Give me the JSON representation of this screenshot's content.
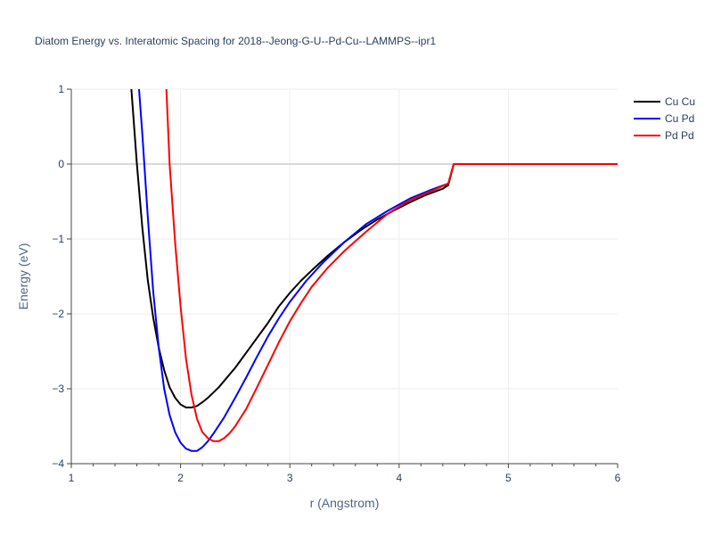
{
  "chart_data": {
    "type": "line",
    "title": "Diatom Energy vs. Interatomic Spacing for 2018--Jeong-G-U--Pd-Cu--LAMMPS--ipr1",
    "xlabel": "r (Angstrom)",
    "ylabel": "Energy (eV)",
    "xlim": [
      1,
      6
    ],
    "ylim": [
      -4,
      1
    ],
    "xticks": [
      1,
      2,
      3,
      4,
      5,
      6
    ],
    "yticks": [
      -4,
      -3,
      -2,
      -1,
      0,
      1
    ],
    "xtick_labels": [
      "1",
      "2",
      "3",
      "4",
      "5",
      "6"
    ],
    "ytick_labels": [
      "−4",
      "−3",
      "−2",
      "−1",
      "0",
      "1"
    ],
    "grid": true,
    "legend_position": "top-right",
    "colors": {
      "grid": "#eeeeee",
      "zeroline": "#cccccc",
      "axis_line": "#444444",
      "text": "#2a3f5f",
      "axis_title": "#506784"
    },
    "series": [
      {
        "name": "Cu Cu",
        "color": "#000000",
        "x": [
          1.55,
          1.6,
          1.65,
          1.7,
          1.75,
          1.8,
          1.85,
          1.9,
          1.95,
          2.0,
          2.05,
          2.1,
          2.15,
          2.2,
          2.25,
          2.35,
          2.5,
          2.65,
          2.8,
          2.9,
          3.0,
          3.1,
          3.2,
          3.35,
          3.5,
          3.65,
          3.8,
          3.95,
          4.1,
          4.25,
          4.4,
          4.45,
          4.5,
          5.0,
          5.5,
          6.0
        ],
        "y": [
          1.0,
          0.0,
          -0.85,
          -1.55,
          -2.05,
          -2.45,
          -2.75,
          -2.98,
          -3.12,
          -3.21,
          -3.25,
          -3.25,
          -3.23,
          -3.18,
          -3.12,
          -2.98,
          -2.72,
          -2.42,
          -2.12,
          -1.9,
          -1.72,
          -1.56,
          -1.42,
          -1.22,
          -1.04,
          -0.88,
          -0.74,
          -0.62,
          -0.51,
          -0.41,
          -0.33,
          -0.28,
          0.0,
          0.0,
          0.0,
          0.0
        ]
      },
      {
        "name": "Cu Pd",
        "color": "#0000ff",
        "x": [
          1.62,
          1.65,
          1.7,
          1.75,
          1.8,
          1.85,
          1.9,
          1.95,
          2.0,
          2.05,
          2.1,
          2.15,
          2.2,
          2.25,
          2.3,
          2.4,
          2.5,
          2.6,
          2.7,
          2.8,
          2.9,
          3.0,
          3.15,
          3.3,
          3.5,
          3.7,
          3.9,
          4.1,
          4.3,
          4.45,
          4.5,
          5.0,
          5.5,
          6.0
        ],
        "y": [
          1.0,
          0.4,
          -0.7,
          -1.7,
          -2.45,
          -3.0,
          -3.35,
          -3.58,
          -3.72,
          -3.8,
          -3.83,
          -3.83,
          -3.78,
          -3.7,
          -3.6,
          -3.38,
          -3.12,
          -2.85,
          -2.57,
          -2.3,
          -2.06,
          -1.84,
          -1.56,
          -1.32,
          -1.04,
          -0.8,
          -0.62,
          -0.46,
          -0.34,
          -0.26,
          0.0,
          0.0,
          0.0,
          0.0
        ]
      },
      {
        "name": "Pd Pd",
        "color": "#ff0000",
        "x": [
          1.87,
          1.9,
          1.95,
          2.0,
          2.05,
          2.1,
          2.15,
          2.2,
          2.25,
          2.3,
          2.35,
          2.4,
          2.45,
          2.5,
          2.6,
          2.7,
          2.8,
          2.9,
          3.0,
          3.1,
          3.2,
          3.35,
          3.5,
          3.7,
          3.9,
          4.1,
          4.3,
          4.45,
          4.5,
          5.0,
          5.5,
          6.0
        ],
        "y": [
          1.0,
          0.0,
          -1.05,
          -1.9,
          -2.6,
          -3.08,
          -3.4,
          -3.58,
          -3.66,
          -3.7,
          -3.7,
          -3.66,
          -3.59,
          -3.5,
          -3.27,
          -2.98,
          -2.68,
          -2.38,
          -2.1,
          -1.86,
          -1.64,
          -1.38,
          -1.16,
          -0.9,
          -0.66,
          -0.48,
          -0.36,
          -0.26,
          0.0,
          0.0,
          0.0,
          0.0
        ]
      }
    ]
  }
}
